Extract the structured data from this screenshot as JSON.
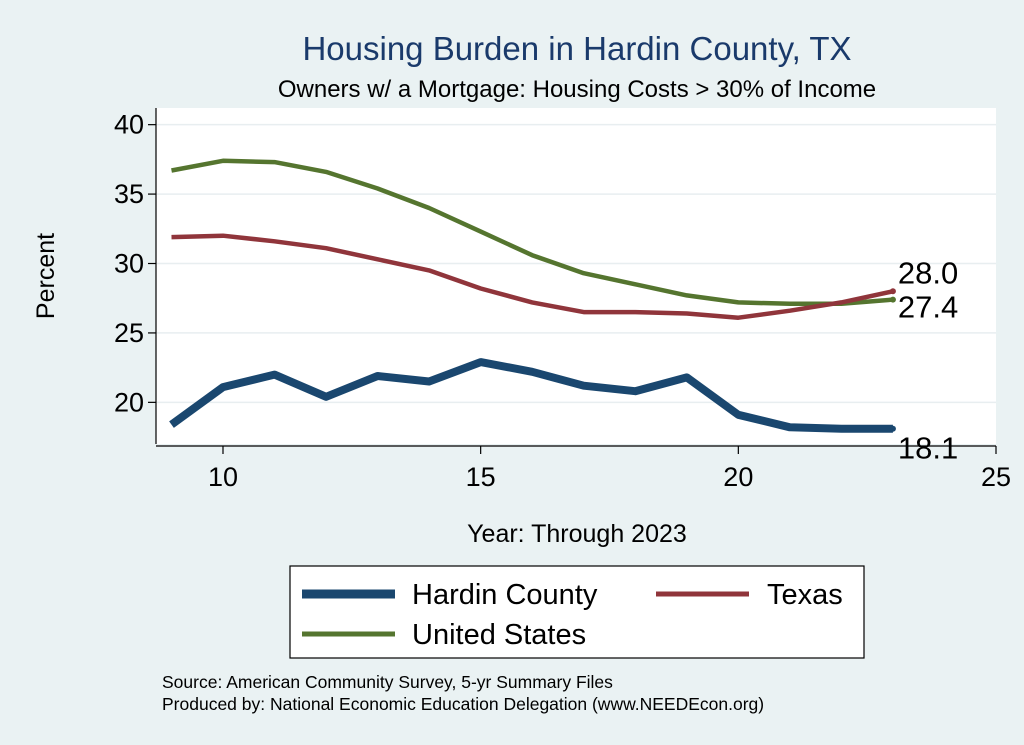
{
  "chart_data": {
    "type": "line",
    "title": "Housing Burden in Hardin County, TX",
    "subtitle": "Owners w/ a Mortgage: Housing Costs > 30% of Income",
    "xlabel": "Year: Through 2023",
    "ylabel": "Percent",
    "xlim": [
      8.7,
      25
    ],
    "ylim": [
      17.0,
      41.2
    ],
    "xticks": [
      10,
      15,
      20,
      25
    ],
    "yticks": [
      20,
      25,
      30,
      35,
      40
    ],
    "grid": true,
    "series": [
      {
        "name": "Hardin County",
        "color": "#1a476f",
        "x": [
          9,
          10,
          11,
          12,
          13,
          14,
          15,
          16,
          17,
          18,
          19,
          20,
          21,
          22,
          23
        ],
        "values": [
          18.4,
          21.1,
          22.0,
          20.4,
          21.9,
          21.5,
          22.9,
          22.2,
          21.2,
          20.8,
          21.8,
          19.1,
          18.2,
          18.1,
          18.1
        ],
        "end_label": "18.1"
      },
      {
        "name": "Texas",
        "color": "#90353b",
        "x": [
          9,
          10,
          11,
          12,
          13,
          14,
          15,
          16,
          17,
          18,
          19,
          20,
          21,
          22,
          23
        ],
        "values": [
          31.9,
          32.0,
          31.6,
          31.1,
          30.3,
          29.5,
          28.2,
          27.2,
          26.5,
          26.5,
          26.4,
          26.1,
          26.6,
          27.2,
          28.0
        ],
        "end_label": "28.0"
      },
      {
        "name": "United States",
        "color": "#55752f",
        "x": [
          9,
          10,
          11,
          12,
          13,
          14,
          15,
          16,
          17,
          18,
          19,
          20,
          21,
          22,
          23
        ],
        "values": [
          36.7,
          37.4,
          37.3,
          36.6,
          35.4,
          34.0,
          32.3,
          30.6,
          29.3,
          28.5,
          27.7,
          27.2,
          27.1,
          27.1,
          27.4
        ],
        "end_label": "27.4"
      }
    ],
    "legend": {
      "placement": "bottom",
      "entries": [
        "Hardin County",
        "Texas",
        "United States"
      ]
    },
    "source_lines": [
      "Source: American Community Survey, 5-yr Summary Files",
      "Produced by: National Economic Education Delegation (www.NEEDEcon.org)"
    ]
  }
}
